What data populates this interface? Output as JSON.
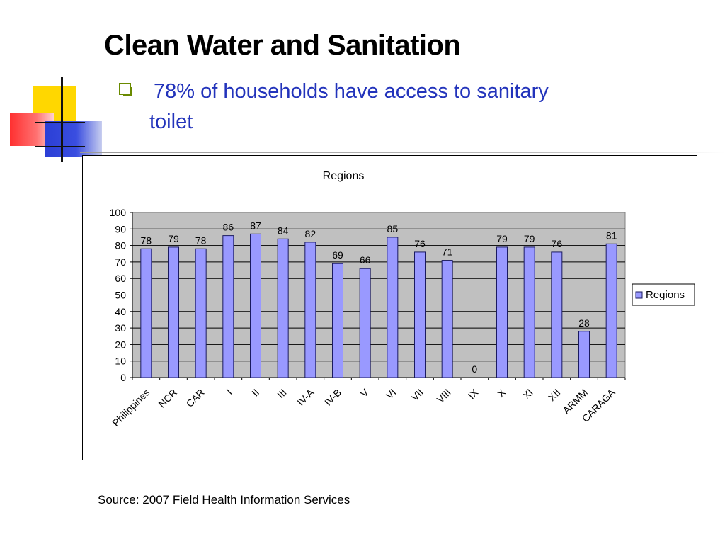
{
  "slide": {
    "title": "Clean Water and Sanitation",
    "bullet_line1": "78% of households have access to sanitary",
    "bullet_line2": "toilet",
    "source": "Source: 2007 Field Health Information Services"
  },
  "colors": {
    "bar_fill": "#9999ff",
    "bar_stroke": "#1a1a60",
    "plot_bg": "#c0c0c0",
    "bullet_text": "#2233bb",
    "bullet_marker": "#6a8a00"
  },
  "chart_data": {
    "type": "bar",
    "title": "Regions",
    "xlabel": "",
    "ylabel": "",
    "ylim": [
      0,
      100
    ],
    "yticks": [
      0,
      10,
      20,
      30,
      40,
      50,
      60,
      70,
      80,
      90,
      100
    ],
    "grid": true,
    "legend_position": "right",
    "categories": [
      "Philippines",
      "NCR",
      "CAR",
      "I",
      "II",
      "III",
      "IV-A",
      "IV-B",
      "V",
      "VI",
      "VII",
      "VIII",
      "IX",
      "X",
      "XI",
      "XII",
      "ARMM",
      "CARAGA"
    ],
    "series": [
      {
        "name": "Regions",
        "values": [
          78,
          79,
          78,
          86,
          87,
          84,
          82,
          69,
          66,
          85,
          76,
          71,
          0,
          79,
          79,
          76,
          28,
          81
        ]
      }
    ]
  }
}
